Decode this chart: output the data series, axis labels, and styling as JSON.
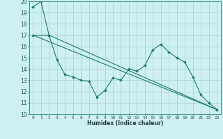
{
  "title": "",
  "xlabel": "Humidex (Indice chaleur)",
  "ylabel": "",
  "bg_color": "#cff0f0",
  "grid_color": "#aad4d4",
  "line_color": "#1a7a6e",
  "xlim": [
    -0.5,
    23.5
  ],
  "ylim": [
    10,
    20
  ],
  "yticks": [
    10,
    11,
    12,
    13,
    14,
    15,
    16,
    17,
    18,
    19,
    20
  ],
  "xticks": [
    0,
    1,
    2,
    3,
    4,
    5,
    6,
    7,
    8,
    9,
    10,
    11,
    12,
    13,
    14,
    15,
    16,
    17,
    18,
    19,
    20,
    21,
    22,
    23
  ],
  "line1_x": [
    0,
    1,
    2,
    23
  ],
  "line1_y": [
    19.5,
    20.0,
    17.0,
    10.4
  ],
  "line2_x": [
    0,
    2,
    3,
    4,
    5,
    6,
    7,
    8,
    9,
    10,
    11,
    12,
    13,
    14,
    15,
    16,
    17,
    18,
    19,
    20,
    21,
    22,
    23
  ],
  "line2_y": [
    17.0,
    17.0,
    14.8,
    13.5,
    13.3,
    13.0,
    12.9,
    11.5,
    12.1,
    13.2,
    13.0,
    14.0,
    13.8,
    14.3,
    15.7,
    16.2,
    15.5,
    15.0,
    14.6,
    13.3,
    11.7,
    11.0,
    10.4
  ],
  "line3_x": [
    0,
    23
  ],
  "line3_y": [
    17.0,
    10.4
  ]
}
